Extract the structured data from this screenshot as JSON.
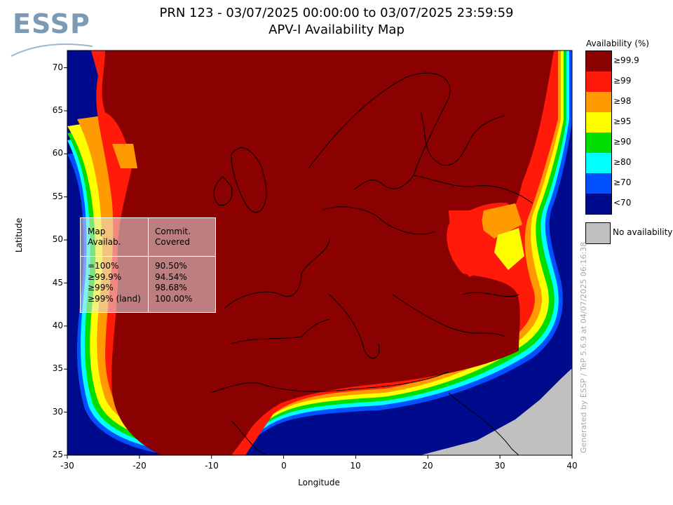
{
  "header": {
    "title_line1": "PRN 123 - 03/07/2025 00:00:00 to 03/07/2025 23:59:59",
    "title_line2": "APV-I Availability Map"
  },
  "logo": {
    "text": "ESSP"
  },
  "axes": {
    "xlabel": "Longitude",
    "ylabel": "Latitude",
    "xticks": [
      "-30",
      "-20",
      "-10",
      "0",
      "10",
      "20",
      "30",
      "40"
    ],
    "yticks": [
      "70",
      "65",
      "60",
      "55",
      "50",
      "45",
      "40",
      "35",
      "30",
      "25"
    ],
    "lon_range": [
      -30,
      40
    ],
    "lat_range": [
      25,
      72
    ]
  },
  "legend": {
    "title": "Availability (%)",
    "items": [
      {
        "label": "≥99.9",
        "color": "#8b0000"
      },
      {
        "label": "≥99",
        "color": "#ff1a0a"
      },
      {
        "label": "≥98",
        "color": "#ff9a00"
      },
      {
        "label": "≥95",
        "color": "#ffff00"
      },
      {
        "label": "≥90",
        "color": "#00dd00"
      },
      {
        "label": "≥80",
        "color": "#00ffff"
      },
      {
        "label": "≥70",
        "color": "#0050ff"
      },
      {
        "label": "<70",
        "color": "#000a8c"
      }
    ],
    "no_availability": {
      "label": "No availability",
      "color": "#c0c0c0"
    }
  },
  "stats_table": {
    "col1_header_line1": "Map",
    "col1_header_line2": "Availab.",
    "col2_header_line1": "Commit.",
    "col2_header_line2": "Covered",
    "rows": [
      {
        "availability": "=100%",
        "covered": "90.50%"
      },
      {
        "availability": "≥99.9%",
        "covered": "94.54%"
      },
      {
        "availability": "≥99%",
        "covered": "98.68%"
      },
      {
        "availability": "≥99% (land)",
        "covered": "100.00%"
      }
    ]
  },
  "credit": "Generated by ESSP / TeP 5.6.9 at 04/07/2025 06:16:38"
}
